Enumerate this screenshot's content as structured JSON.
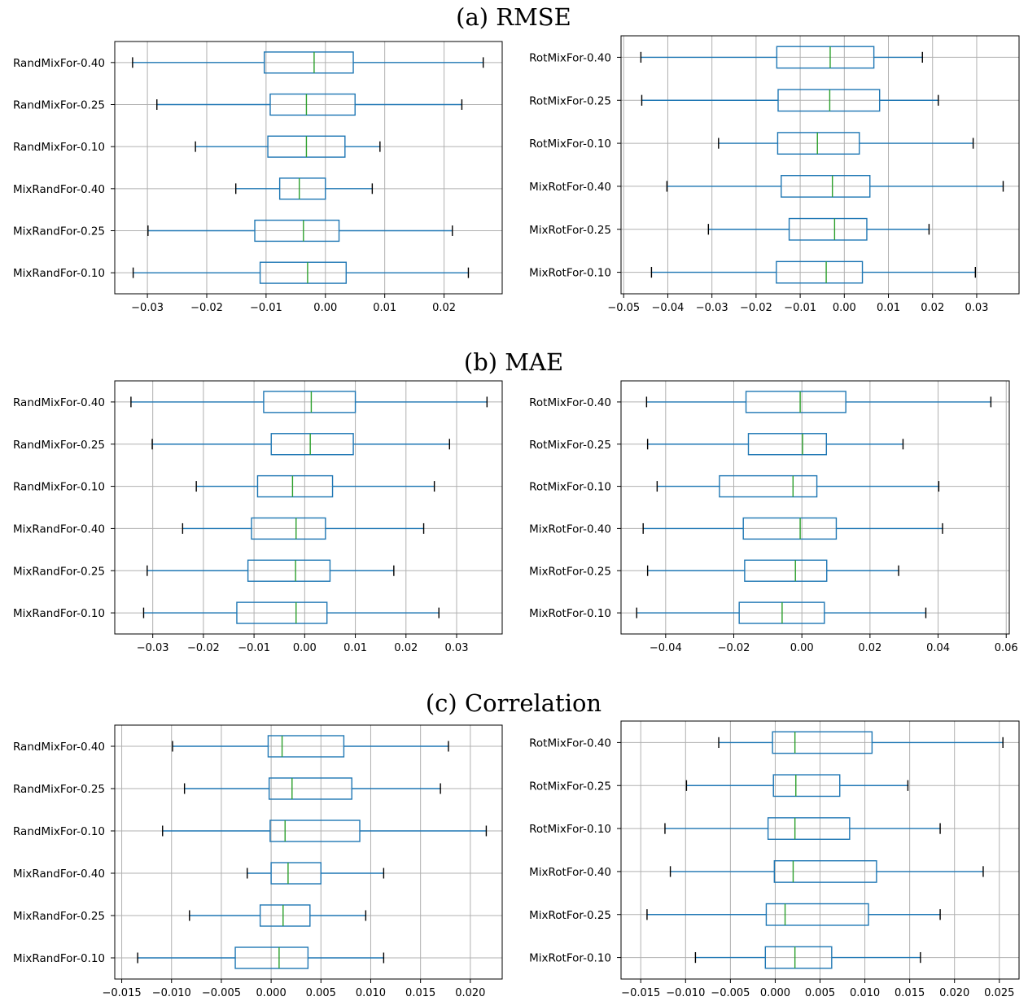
{
  "sections": [
    {
      "title": "(a) RMSE",
      "panels": [
        {
          "categories": [
            "RandMixFor-0.40",
            "RandMixFor-0.25",
            "RandMixFor-0.10",
            "MixRandFor-0.40",
            "MixRandFor-0.25",
            "MixRandFor-0.10"
          ],
          "xlim": [
            -0.0355,
            0.0298
          ],
          "ticks": [
            -0.03,
            -0.02,
            -0.01,
            0.0,
            0.01,
            0.02
          ],
          "tick_labels": [
            "−0.03",
            "−0.02",
            "−0.01",
            "0.00",
            "0.01",
            "0.02"
          ],
          "boxes": [
            {
              "wl": -0.0325,
              "q1": -0.0103,
              "med": -0.0019,
              "q3": 0.0047,
              "wh": 0.0266
            },
            {
              "wl": -0.0284,
              "q1": -0.0093,
              "med": -0.0032,
              "q3": 0.005,
              "wh": 0.023
            },
            {
              "wl": -0.0219,
              "q1": -0.0097,
              "med": -0.0032,
              "q3": 0.0033,
              "wh": 0.0092
            },
            {
              "wl": -0.0151,
              "q1": -0.0077,
              "med": -0.0044,
              "q3": 0.0,
              "wh": 0.0079
            },
            {
              "wl": -0.0299,
              "q1": -0.0119,
              "med": -0.0037,
              "q3": 0.0023,
              "wh": 0.0214
            },
            {
              "wl": -0.0324,
              "q1": -0.011,
              "med": -0.003,
              "q3": 0.0035,
              "wh": 0.0241
            }
          ]
        },
        {
          "categories": [
            "RotMixFor-0.40",
            "RotMixFor-0.25",
            "RotMixFor-0.10",
            "MixRotFor-0.40",
            "MixRotFor-0.25",
            "MixRotFor-0.10"
          ],
          "xlim": [
            -0.0506,
            0.0396
          ],
          "ticks": [
            -0.05,
            -0.04,
            -0.03,
            -0.02,
            -0.01,
            0.0,
            0.01,
            0.02,
            0.03
          ],
          "tick_labels": [
            "−0.05",
            "−0.04",
            "−0.03",
            "−0.02",
            "−0.01",
            "0.00",
            "0.01",
            "0.02",
            "0.03"
          ],
          "boxes": [
            {
              "wl": -0.0461,
              "q1": -0.0153,
              "med": -0.0032,
              "q3": 0.0067,
              "wh": 0.0177
            },
            {
              "wl": -0.0459,
              "q1": -0.015,
              "med": -0.0033,
              "q3": 0.008,
              "wh": 0.0213
            },
            {
              "wl": -0.0285,
              "q1": -0.0151,
              "med": -0.0061,
              "q3": 0.0034,
              "wh": 0.0292
            },
            {
              "wl": -0.0402,
              "q1": -0.0143,
              "med": -0.0027,
              "q3": 0.0058,
              "wh": 0.036
            },
            {
              "wl": -0.0308,
              "q1": -0.0125,
              "med": -0.0022,
              "q3": 0.0051,
              "wh": 0.0192
            },
            {
              "wl": -0.0437,
              "q1": -0.0154,
              "med": -0.0041,
              "q3": 0.0041,
              "wh": 0.0297
            }
          ]
        }
      ]
    },
    {
      "title": "(b) MAE",
      "panels": [
        {
          "categories": [
            "RandMixFor-0.40",
            "RandMixFor-0.25",
            "RandMixFor-0.10",
            "MixRandFor-0.40",
            "MixRandFor-0.25",
            "MixRandFor-0.10"
          ],
          "xlim": [
            -0.0375,
            0.039
          ],
          "ticks": [
            -0.03,
            -0.02,
            -0.01,
            0.0,
            0.01,
            0.02,
            0.03
          ],
          "tick_labels": [
            "−0.03",
            "−0.02",
            "−0.01",
            "0.00",
            "0.01",
            "0.02",
            "0.03"
          ],
          "boxes": [
            {
              "wl": -0.0343,
              "q1": -0.0081,
              "med": 0.0013,
              "q3": 0.01,
              "wh": 0.036
            },
            {
              "wl": -0.0301,
              "q1": -0.0066,
              "med": 0.0011,
              "q3": 0.0096,
              "wh": 0.0286
            },
            {
              "wl": -0.0214,
              "q1": -0.0093,
              "med": -0.0024,
              "q3": 0.0055,
              "wh": 0.0256
            },
            {
              "wl": -0.0241,
              "q1": -0.0105,
              "med": -0.0017,
              "q3": 0.0041,
              "wh": 0.0235
            },
            {
              "wl": -0.0311,
              "q1": -0.0112,
              "med": -0.0018,
              "q3": 0.005,
              "wh": 0.0176
            },
            {
              "wl": -0.0318,
              "q1": -0.0134,
              "med": -0.0017,
              "q3": 0.0044,
              "wh": 0.0265
            }
          ]
        },
        {
          "categories": [
            "RotMixFor-0.40",
            "RotMixFor-0.25",
            "RotMixFor-0.10",
            "MixRotFor-0.40",
            "MixRotFor-0.25",
            "MixRotFor-0.10"
          ],
          "xlim": [
            -0.0531,
            0.0609
          ],
          "ticks": [
            -0.04,
            -0.02,
            0.0,
            0.02,
            0.04,
            0.06
          ],
          "tick_labels": [
            "−0.04",
            "−0.02",
            "0.00",
            "0.02",
            "0.04",
            "0.06"
          ],
          "boxes": [
            {
              "wl": -0.0456,
              "q1": -0.0164,
              "med": -0.0005,
              "q3": 0.0129,
              "wh": 0.0555
            },
            {
              "wl": -0.0453,
              "q1": -0.0157,
              "med": 0.0002,
              "q3": 0.0072,
              "wh": 0.0297
            },
            {
              "wl": -0.0425,
              "q1": -0.0242,
              "med": -0.0026,
              "q3": 0.0044,
              "wh": 0.0402
            },
            {
              "wl": -0.0466,
              "q1": -0.0172,
              "med": -0.0005,
              "q3": 0.0101,
              "wh": 0.0413
            },
            {
              "wl": -0.0453,
              "q1": -0.0168,
              "med": -0.0019,
              "q3": 0.0073,
              "wh": 0.0284
            },
            {
              "wl": -0.0485,
              "q1": -0.0184,
              "med": -0.0058,
              "q3": 0.0066,
              "wh": 0.0364
            }
          ]
        }
      ]
    },
    {
      "title": "(c) Correlation",
      "panels": [
        {
          "categories": [
            "RandMixFor-0.40",
            "RandMixFor-0.25",
            "RandMixFor-0.10",
            "MixRandFor-0.40",
            "MixRandFor-0.25",
            "MixRandFor-0.10"
          ],
          "xlim": [
            -0.0157,
            0.0232
          ],
          "ticks": [
            -0.015,
            -0.01,
            -0.005,
            0.0,
            0.005,
            0.01,
            0.015,
            0.02
          ],
          "tick_labels": [
            "−0.015",
            "−0.010",
            "−0.005",
            "0.000",
            "0.005",
            "0.010",
            "0.015",
            "0.020"
          ],
          "boxes": [
            {
              "wl": -0.0099,
              "q1": -0.0003,
              "med": 0.0011,
              "q3": 0.0073,
              "wh": 0.0178
            },
            {
              "wl": -0.0087,
              "q1": -0.0002,
              "med": 0.0021,
              "q3": 0.0081,
              "wh": 0.017
            },
            {
              "wl": -0.0109,
              "q1": -0.0001,
              "med": 0.0014,
              "q3": 0.0089,
              "wh": 0.0216
            },
            {
              "wl": -0.0024,
              "q1": 0.0,
              "med": 0.0017,
              "q3": 0.005,
              "wh": 0.0113
            },
            {
              "wl": -0.0082,
              "q1": -0.0011,
              "med": 0.0012,
              "q3": 0.0039,
              "wh": 0.0095
            },
            {
              "wl": -0.0134,
              "q1": -0.0036,
              "med": 0.0008,
              "q3": 0.0037,
              "wh": 0.0113
            }
          ]
        },
        {
          "categories": [
            "RotMixFor-0.40",
            "RotMixFor-0.25",
            "RotMixFor-0.10",
            "MixRotFor-0.40",
            "MixRotFor-0.25",
            "MixRotFor-0.10"
          ],
          "xlim": [
            -0.0172,
            0.0272
          ],
          "ticks": [
            -0.015,
            -0.01,
            -0.005,
            0.0,
            0.005,
            0.01,
            0.015,
            0.02,
            0.025
          ],
          "tick_labels": [
            "−0.015",
            "−0.010",
            "−0.005",
            "0.000",
            "0.005",
            "0.010",
            "0.015",
            "0.020",
            "0.025"
          ],
          "boxes": [
            {
              "wl": -0.0063,
              "q1": -0.0003,
              "med": 0.0022,
              "q3": 0.0108,
              "wh": 0.0254
            },
            {
              "wl": -0.0099,
              "q1": -0.0002,
              "med": 0.0023,
              "q3": 0.0072,
              "wh": 0.0148
            },
            {
              "wl": -0.0123,
              "q1": -0.0008,
              "med": 0.0022,
              "q3": 0.0083,
              "wh": 0.0184
            },
            {
              "wl": -0.0117,
              "q1": -0.0001,
              "med": 0.002,
              "q3": 0.0113,
              "wh": 0.0232
            },
            {
              "wl": -0.0143,
              "q1": -0.001,
              "med": 0.0011,
              "q3": 0.0104,
              "wh": 0.0184
            },
            {
              "wl": -0.0089,
              "q1": -0.0011,
              "med": 0.0022,
              "q3": 0.0063,
              "wh": 0.0162
            }
          ]
        }
      ]
    }
  ],
  "colors": {
    "box": "#1f77b4",
    "median": "#2ca02c",
    "whisker_cap": "#000000",
    "grid": "#b0b0b0",
    "axes": "#000000"
  },
  "chart_data": [
    {
      "type": "box",
      "title": "(a) RMSE",
      "categories": [
        "RandMixFor-0.40",
        "RandMixFor-0.25",
        "RandMixFor-0.10",
        "MixRandFor-0.40",
        "MixRandFor-0.25",
        "MixRandFor-0.10"
      ],
      "orientation": "horizontal",
      "grid": true
    },
    {
      "type": "box",
      "title": "(a) RMSE",
      "categories": [
        "RotMixFor-0.40",
        "RotMixFor-0.25",
        "RotMixFor-0.10",
        "MixRotFor-0.40",
        "MixRotFor-0.25",
        "MixRotFor-0.10"
      ],
      "orientation": "horizontal",
      "grid": true
    },
    {
      "type": "box",
      "title": "(b) MAE",
      "categories": [
        "RandMixFor-0.40",
        "RandMixFor-0.25",
        "RandMixFor-0.10",
        "MixRandFor-0.40",
        "MixRandFor-0.25",
        "MixRandFor-0.10"
      ],
      "orientation": "horizontal",
      "grid": true
    },
    {
      "type": "box",
      "title": "(b) MAE",
      "categories": [
        "RotMixFor-0.40",
        "RotMixFor-0.25",
        "RotMixFor-0.10",
        "MixRotFor-0.40",
        "MixRotFor-0.25",
        "MixRotFor-0.10"
      ],
      "orientation": "horizontal",
      "grid": true
    },
    {
      "type": "box",
      "title": "(c) Correlation",
      "categories": [
        "RandMixFor-0.40",
        "RandMixFor-0.25",
        "RandMixFor-0.10",
        "MixRandFor-0.40",
        "MixRandFor-0.25",
        "MixRandFor-0.10"
      ],
      "orientation": "horizontal",
      "grid": true
    },
    {
      "type": "box",
      "title": "(c) Correlation",
      "categories": [
        "RotMixFor-0.40",
        "RotMixFor-0.25",
        "RotMixFor-0.10",
        "MixRotFor-0.40",
        "MixRotFor-0.25",
        "MixRotFor-0.10"
      ],
      "orientation": "horizontal",
      "grid": true
    }
  ]
}
